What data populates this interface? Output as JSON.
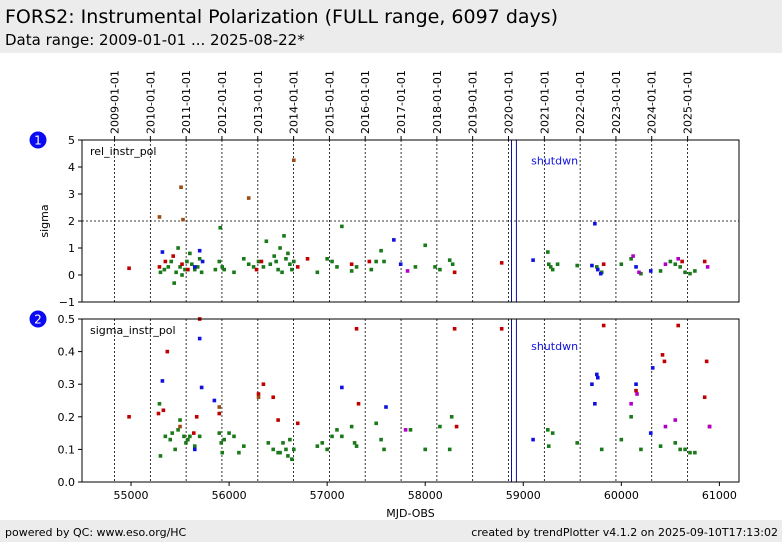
{
  "header": {
    "title": "FORS2: Instrumental Polarization (FULL range, 6097 days)",
    "subtitle": "Data range: 2009-01-01 ... 2025-08-22*"
  },
  "footer": {
    "left": "powered by QC: www.eso.org/HC",
    "right": "created by trendPlotter v4.1.2 on 2025-09-10T17:13:02"
  },
  "colors": {
    "green": "#1a7a1a",
    "blue": "#1010e0",
    "red": "#c00000",
    "magenta": "#b000c8",
    "brown": "#9b4a14",
    "shutdown": "#1010a0",
    "badge": "#0a0af5"
  },
  "chart_data": [
    {
      "type": "scatter",
      "panel_number": "1",
      "panel_label": "rel_instr_pol",
      "ylabel": "sigma",
      "xlabel": "",
      "xlim": [
        54500,
        61200
      ],
      "ylim": [
        -1,
        5
      ],
      "yticks": [
        "−1",
        "0",
        "1",
        "2",
        "3",
        "4",
        "5"
      ],
      "yticks_values": [
        -1,
        0,
        1,
        2,
        3,
        4,
        5
      ],
      "threshold": 2,
      "annotation": "shutdwn",
      "annotation_x": 59080,
      "annotation_y": 4.1,
      "shutdown_lines": [
        58880,
        58930
      ],
      "year_lines": [
        54832,
        55197,
        55562,
        55927,
        56293,
        56658,
        57023,
        57388,
        57754,
        58119,
        58484,
        58849,
        59215,
        59580,
        59945,
        60310,
        60676
      ],
      "date_labels": [
        "2009-01-01",
        "2010-01-01",
        "2011-01-01",
        "2012-01-01",
        "2013-01-01",
        "2014-01-01",
        "2015-01-01",
        "2016-01-01",
        "2017-01-01",
        "2018-01-01",
        "2019-01-01",
        "2020-01-01",
        "2021-01-01",
        "2022-01-01",
        "2023-01-01",
        "2024-01-01",
        "2025-01-01"
      ],
      "series": [
        {
          "color": "green",
          "points": [
            [
              55300,
              0.1
            ],
            [
              55340,
              0.2
            ],
            [
              55380,
              0.3
            ],
            [
              55410,
              0.5
            ],
            [
              55440,
              -0.3
            ],
            [
              55460,
              0.1
            ],
            [
              55480,
              1.0
            ],
            [
              55500,
              0.3
            ],
            [
              55520,
              0.0
            ],
            [
              55550,
              0.2
            ],
            [
              55570,
              0.5
            ],
            [
              55600,
              0.8
            ],
            [
              55620,
              0.4
            ],
            [
              55650,
              0.2
            ],
            [
              55680,
              0.3
            ],
            [
              55700,
              0.6
            ],
            [
              55720,
              0.1
            ],
            [
              55860,
              0.2
            ],
            [
              55900,
              0.5
            ],
            [
              55910,
              1.75
            ],
            [
              55930,
              0.3
            ],
            [
              55950,
              0.2
            ],
            [
              56050,
              0.1
            ],
            [
              56150,
              0.6
            ],
            [
              56200,
              0.4
            ],
            [
              56250,
              0.3
            ],
            [
              56300,
              0.5
            ],
            [
              56350,
              0.3
            ],
            [
              56380,
              1.25
            ],
            [
              56420,
              0.4
            ],
            [
              56460,
              0.7
            ],
            [
              56480,
              0.5
            ],
            [
              56500,
              0.2
            ],
            [
              56520,
              1.0
            ],
            [
              56540,
              0.1
            ],
            [
              56560,
              1.45
            ],
            [
              56580,
              0.6
            ],
            [
              56600,
              0.8
            ],
            [
              56620,
              0.4
            ],
            [
              56640,
              0.2
            ],
            [
              56660,
              0.5
            ],
            [
              56900,
              0.1
            ],
            [
              57000,
              0.6
            ],
            [
              57050,
              0.5
            ],
            [
              57100,
              0.3
            ],
            [
              57150,
              1.8
            ],
            [
              57250,
              0.15
            ],
            [
              57300,
              0.3
            ],
            [
              57450,
              0.2
            ],
            [
              57500,
              0.5
            ],
            [
              57550,
              0.9
            ],
            [
              57580,
              0.5
            ],
            [
              57900,
              0.3
            ],
            [
              58000,
              1.1
            ],
            [
              58100,
              0.3
            ],
            [
              58150,
              0.2
            ],
            [
              58250,
              0.55
            ],
            [
              58280,
              0.4
            ],
            [
              59250,
              0.85
            ],
            [
              59260,
              0.4
            ],
            [
              59280,
              0.3
            ],
            [
              59300,
              0.2
            ],
            [
              59350,
              0.4
            ],
            [
              59550,
              0.35
            ],
            [
              59750,
              0.3
            ],
            [
              59800,
              0.1
            ],
            [
              60000,
              0.4
            ],
            [
              60100,
              0.6
            ],
            [
              60200,
              0.05
            ],
            [
              60400,
              0.15
            ],
            [
              60500,
              0.5
            ],
            [
              60550,
              0.4
            ],
            [
              60600,
              0.3
            ],
            [
              60650,
              0.1
            ],
            [
              60700,
              0.05
            ],
            [
              60750,
              0.15
            ]
          ]
        },
        {
          "color": "blue",
          "points": [
            [
              55320,
              0.85
            ],
            [
              55650,
              0.3
            ],
            [
              55700,
              0.9
            ],
            [
              55730,
              0.5
            ],
            [
              57680,
              1.3
            ],
            [
              57750,
              0.4
            ],
            [
              59100,
              0.55
            ],
            [
              59700,
              0.35
            ],
            [
              59730,
              1.9
            ],
            [
              59760,
              0.2
            ],
            [
              59790,
              0.05
            ],
            [
              60150,
              0.3
            ],
            [
              60300,
              0.15
            ]
          ]
        },
        {
          "color": "red",
          "points": [
            [
              54980,
              0.25
            ],
            [
              55290,
              0.3
            ],
            [
              55350,
              0.5
            ],
            [
              55430,
              0.7
            ],
            [
              55520,
              0.4
            ],
            [
              55580,
              0.2
            ],
            [
              56280,
              0.2
            ],
            [
              56330,
              0.5
            ],
            [
              56700,
              0.3
            ],
            [
              56800,
              0.6
            ],
            [
              57250,
              0.4
            ],
            [
              57430,
              0.5
            ],
            [
              58300,
              0.1
            ],
            [
              58780,
              0.45
            ],
            [
              59820,
              0.4
            ],
            [
              60620,
              0.5
            ],
            [
              60850,
              0.5
            ]
          ]
        },
        {
          "color": "magenta",
          "points": [
            [
              57820,
              0.15
            ],
            [
              60120,
              0.7
            ],
            [
              60180,
              0.1
            ],
            [
              60450,
              0.4
            ],
            [
              60580,
              0.6
            ],
            [
              60880,
              0.3
            ]
          ]
        },
        {
          "color": "brown",
          "points": [
            [
              55290,
              2.15
            ],
            [
              55510,
              3.25
            ],
            [
              55530,
              2.05
            ],
            [
              56200,
              2.85
            ],
            [
              56660,
              4.25
            ]
          ]
        }
      ]
    },
    {
      "type": "scatter",
      "panel_number": "2",
      "panel_label": "sigma_instr_pol",
      "ylabel": "",
      "xlabel": "MJD-OBS",
      "xlim": [
        54500,
        61200
      ],
      "ylim": [
        0,
        0.5
      ],
      "yticks": [
        "0.0",
        "0.1",
        "0.2",
        "0.3",
        "0.4",
        "0.5"
      ],
      "yticks_values": [
        0,
        0.1,
        0.2,
        0.3,
        0.4,
        0.5
      ],
      "xticks": [
        "55000",
        "56000",
        "57000",
        "58000",
        "59000",
        "60000",
        "61000"
      ],
      "xticks_values": [
        55000,
        56000,
        57000,
        58000,
        59000,
        60000,
        61000
      ],
      "annotation": "shutdwn",
      "annotation_x": 59080,
      "annotation_y": 0.405,
      "shutdown_lines": [
        58880,
        58930
      ],
      "year_lines": [
        54832,
        55197,
        55562,
        55927,
        56293,
        56658,
        57023,
        57388,
        57754,
        58119,
        58484,
        58849,
        59215,
        59580,
        59945,
        60310,
        60676
      ],
      "series": [
        {
          "color": "green",
          "points": [
            [
              55290,
              0.24
            ],
            [
              55300,
              0.08
            ],
            [
              55350,
              0.14
            ],
            [
              55400,
              0.13
            ],
            [
              55420,
              0.15
            ],
            [
              55450,
              0.1
            ],
            [
              55480,
              0.16
            ],
            [
              55500,
              0.19
            ],
            [
              55540,
              0.14
            ],
            [
              55560,
              0.12
            ],
            [
              55580,
              0.13
            ],
            [
              55600,
              0.14
            ],
            [
              55650,
              0.11
            ],
            [
              55700,
              0.14
            ],
            [
              55900,
              0.15
            ],
            [
              55920,
              0.12
            ],
            [
              55930,
              0.09
            ],
            [
              55950,
              0.13
            ],
            [
              56000,
              0.15
            ],
            [
              56050,
              0.14
            ],
            [
              56100,
              0.09
            ],
            [
              56150,
              0.11
            ],
            [
              56400,
              0.12
            ],
            [
              56450,
              0.1
            ],
            [
              56500,
              0.09
            ],
            [
              56520,
              0.09
            ],
            [
              56550,
              0.12
            ],
            [
              56580,
              0.1
            ],
            [
              56600,
              0.08
            ],
            [
              56620,
              0.13
            ],
            [
              56640,
              0.07
            ],
            [
              56660,
              0.1
            ],
            [
              56900,
              0.11
            ],
            [
              56950,
              0.12
            ],
            [
              57000,
              0.1
            ],
            [
              57050,
              0.14
            ],
            [
              57100,
              0.16
            ],
            [
              57150,
              0.14
            ],
            [
              57250,
              0.17
            ],
            [
              57280,
              0.12
            ],
            [
              57300,
              0.11
            ],
            [
              57500,
              0.18
            ],
            [
              57550,
              0.13
            ],
            [
              57580,
              0.1
            ],
            [
              57850,
              0.16
            ],
            [
              58000,
              0.1
            ],
            [
              58150,
              0.17
            ],
            [
              58250,
              0.1
            ],
            [
              58270,
              0.2
            ],
            [
              59250,
              0.16
            ],
            [
              59260,
              0.11
            ],
            [
              59300,
              0.15
            ],
            [
              59550,
              0.12
            ],
            [
              59800,
              0.1
            ],
            [
              60000,
              0.13
            ],
            [
              60100,
              0.2
            ],
            [
              60200,
              0.1
            ],
            [
              60400,
              0.11
            ],
            [
              60550,
              0.12
            ],
            [
              60600,
              0.1
            ],
            [
              60650,
              0.1
            ],
            [
              60700,
              0.09
            ],
            [
              60750,
              0.09
            ]
          ]
        },
        {
          "color": "blue",
          "points": [
            [
              55320,
              0.31
            ],
            [
              55650,
              0.1
            ],
            [
              55700,
              0.44
            ],
            [
              55720,
              0.29
            ],
            [
              55850,
              0.25
            ],
            [
              57150,
              0.29
            ],
            [
              57600,
              0.23
            ],
            [
              59100,
              0.13
            ],
            [
              59700,
              0.3
            ],
            [
              59730,
              0.24
            ],
            [
              59750,
              0.33
            ],
            [
              59760,
              0.32
            ],
            [
              60150,
              0.3
            ],
            [
              60300,
              0.15
            ],
            [
              60320,
              0.35
            ]
          ]
        },
        {
          "color": "red",
          "points": [
            [
              54980,
              0.2
            ],
            [
              55280,
              0.21
            ],
            [
              55330,
              0.22
            ],
            [
              55370,
              0.4
            ],
            [
              55640,
              0.15
            ],
            [
              55670,
              0.2
            ],
            [
              55700,
              0.5
            ],
            [
              55900,
              0.21
            ],
            [
              56300,
              0.27
            ],
            [
              56350,
              0.3
            ],
            [
              56450,
              0.26
            ],
            [
              56500,
              0.19
            ],
            [
              56700,
              0.18
            ],
            [
              57300,
              0.47
            ],
            [
              57320,
              0.24
            ],
            [
              58300,
              0.47
            ],
            [
              58320,
              0.17
            ],
            [
              58780,
              0.47
            ],
            [
              59820,
              0.48
            ],
            [
              60150,
              0.28
            ],
            [
              60420,
              0.39
            ],
            [
              60440,
              0.37
            ],
            [
              60580,
              0.48
            ],
            [
              60850,
              0.26
            ],
            [
              60870,
              0.37
            ],
            [
              60900,
              0.17
            ]
          ]
        },
        {
          "color": "magenta",
          "points": [
            [
              57800,
              0.16
            ],
            [
              60100,
              0.24
            ],
            [
              60160,
              0.27
            ],
            [
              60450,
              0.17
            ],
            [
              60550,
              0.19
            ],
            [
              60900,
              0.17
            ]
          ]
        },
        {
          "color": "brown",
          "points": [
            [
              55500,
              0.17
            ],
            [
              55900,
              0.23
            ],
            [
              56300,
              0.26
            ]
          ]
        }
      ]
    }
  ]
}
